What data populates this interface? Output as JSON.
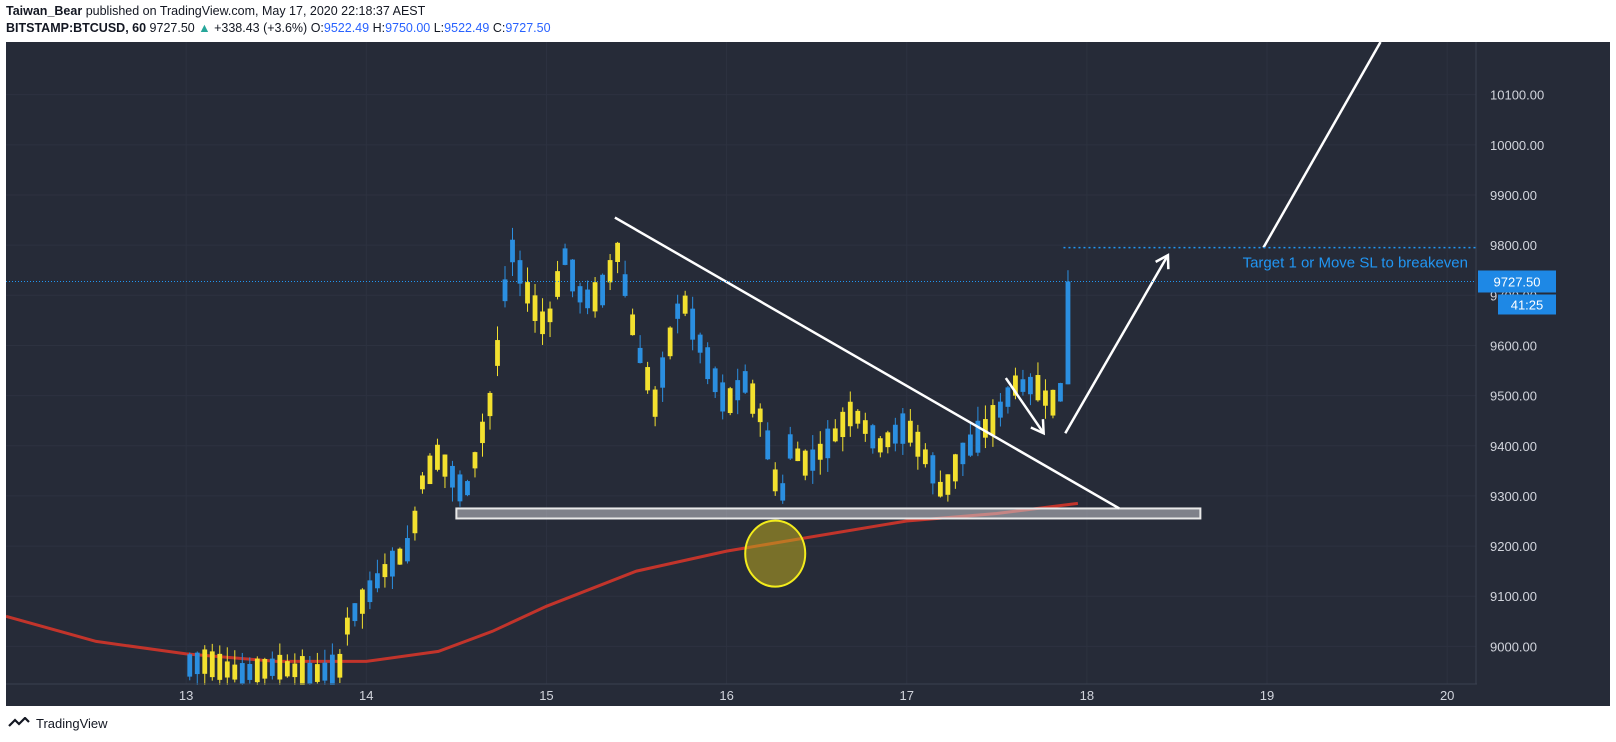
{
  "header": {
    "author": "Taiwan_Bear",
    "published_text": "published on TradingView.com, May 17, 2020 22:18:37 AEST",
    "symbol": "BITSTAMP:BTCUSD, 60",
    "last": "9727.50",
    "change": "+338.43 (+3.6%)",
    "open_label": "O:",
    "open": "9522.49",
    "high_label": "H:",
    "high": "9750.00",
    "low_label": "L:",
    "low": "9522.49",
    "close_label": "C:",
    "close": "9727.50"
  },
  "footer": {
    "brand": "TradingView"
  },
  "colors": {
    "background": "#262b38",
    "up": "#2b8fe0",
    "down": "#f3e12f",
    "ma": "#c2342b",
    "annotation": "#ffffff",
    "price_label": "#1e88e5"
  },
  "chart_data": {
    "type": "candlestick",
    "x_ticks": [
      "13",
      "14",
      "15",
      "16",
      "17",
      "18",
      "19",
      "20"
    ],
    "x_tick_values": [
      13,
      14,
      15,
      16,
      17,
      18,
      19,
      20
    ],
    "xlim": [
      12.0,
      20.16
    ],
    "ylim": [
      8925,
      10205
    ],
    "y_ticks": [
      "9000.00",
      "9100.00",
      "9200.00",
      "9300.00",
      "9400.00",
      "9500.00",
      "9600.00",
      "9700.00",
      "9800.00",
      "9900.00",
      "10000.00",
      "10100.00"
    ],
    "y_tick_values": [
      9000,
      9100,
      9200,
      9300,
      9400,
      9500,
      9600,
      9700,
      9800,
      9900,
      10000,
      10100
    ],
    "last_price": {
      "label": "9727.50",
      "value": 9727.5,
      "countdown": "41:25"
    },
    "price_labels_on_axis_note": "9727.50 label covers 9700.00 tick",
    "candle_anchors": [
      [
        12.0,
        8940
      ],
      [
        12.3,
        8930
      ],
      [
        12.6,
        8935
      ],
      [
        12.9,
        8950
      ],
      [
        13.1,
        8970
      ],
      [
        13.3,
        8945
      ],
      [
        13.5,
        8960
      ],
      [
        13.7,
        8945
      ],
      [
        13.85,
        8955
      ],
      [
        13.9,
        9050
      ],
      [
        14.0,
        9100
      ],
      [
        14.1,
        9150
      ],
      [
        14.25,
        9200
      ],
      [
        14.3,
        9320
      ],
      [
        14.4,
        9380
      ],
      [
        14.55,
        9300
      ],
      [
        14.7,
        9500
      ],
      [
        14.8,
        9800
      ],
      [
        14.9,
        9700
      ],
      [
        15.0,
        9630
      ],
      [
        15.1,
        9780
      ],
      [
        15.2,
        9690
      ],
      [
        15.3,
        9700
      ],
      [
        15.4,
        9790
      ],
      [
        15.5,
        9600
      ],
      [
        15.55,
        9550
      ],
      [
        15.6,
        9480
      ],
      [
        15.75,
        9700
      ],
      [
        15.9,
        9560
      ],
      [
        16.0,
        9480
      ],
      [
        16.1,
        9530
      ],
      [
        16.2,
        9450
      ],
      [
        16.3,
        9280
      ],
      [
        16.35,
        9400
      ],
      [
        16.45,
        9360
      ],
      [
        16.6,
        9420
      ],
      [
        16.7,
        9470
      ],
      [
        16.85,
        9400
      ],
      [
        17.0,
        9440
      ],
      [
        17.15,
        9350
      ],
      [
        17.2,
        9300
      ],
      [
        17.3,
        9380
      ],
      [
        17.4,
        9420
      ],
      [
        17.5,
        9460
      ],
      [
        17.6,
        9520
      ],
      [
        17.72,
        9520
      ],
      [
        17.8,
        9480
      ],
      [
        17.88,
        9520
      ],
      [
        17.92,
        9727.5
      ]
    ],
    "ma_line": [
      [
        12.0,
        9060
      ],
      [
        12.5,
        9010
      ],
      [
        13.0,
        8985
      ],
      [
        13.5,
        8970
      ],
      [
        14.0,
        8970
      ],
      [
        14.4,
        8990
      ],
      [
        14.7,
        9030
      ],
      [
        15.0,
        9080
      ],
      [
        15.5,
        9150
      ],
      [
        16.0,
        9190
      ],
      [
        16.5,
        9220
      ],
      [
        17.0,
        9250
      ],
      [
        17.5,
        9265
      ],
      [
        17.95,
        9285
      ]
    ],
    "annotations": {
      "trendline": [
        [
          15.38,
          9855
        ],
        [
          18.18,
          9275
        ]
      ],
      "support_zone": {
        "x": [
          14.5,
          18.63
        ],
        "y": [
          9255,
          9275
        ]
      },
      "circle": {
        "x": 16.27,
        "y": 9185
      },
      "small_arrow": [
        [
          17.55,
          9535
        ],
        [
          17.76,
          9425
        ]
      ],
      "up_arrow": [
        [
          17.88,
          9425
        ],
        [
          18.45,
          9780
        ]
      ],
      "long_line": [
        [
          18.98,
          9795
        ],
        [
          19.63,
          10205
        ]
      ],
      "target_line": {
        "y": 9795,
        "x": [
          17.87,
          20.16
        ]
      },
      "target_text": "Target 1 or Move SL to breakeven"
    }
  }
}
